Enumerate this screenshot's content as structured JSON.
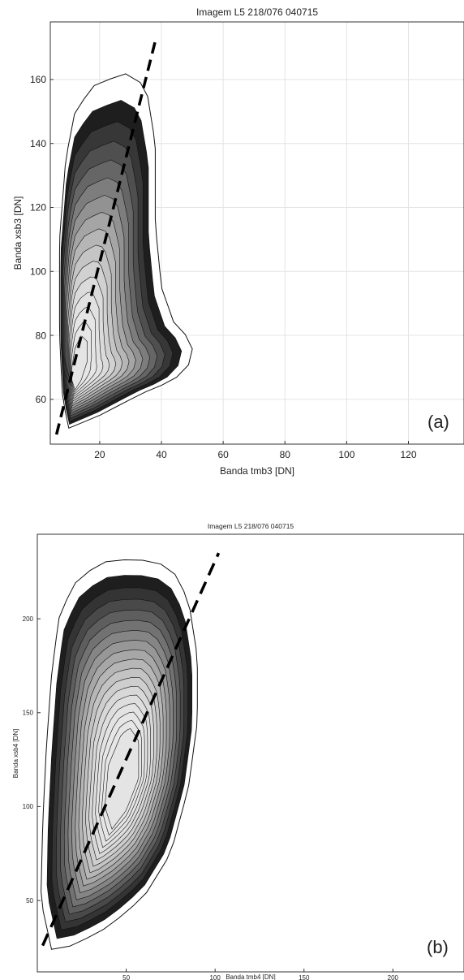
{
  "chart_data": [
    {
      "type": "contour",
      "title": "Imagem L5 218/076 040715",
      "xlabel": "Banda tmb3 [DN]",
      "ylabel": "Banda xsb3 [DN]",
      "panel_label": "(a)",
      "xlim": [
        4,
        138
      ],
      "ylim": [
        46,
        178
      ],
      "xticks": [
        20,
        40,
        60,
        80,
        100,
        120
      ],
      "yticks": [
        60,
        80,
        100,
        120,
        140,
        160
      ],
      "grid": true,
      "fit_line": {
        "style": "dashed",
        "x": [
          6,
          38
        ],
        "y": [
          49,
          172
        ]
      },
      "density": {
        "outer": [
          [
            10,
            51
          ],
          [
            20,
            55
          ],
          [
            34,
            62
          ],
          [
            44,
            66
          ],
          [
            50,
            72
          ],
          [
            50,
            78
          ],
          [
            44,
            84
          ],
          [
            40,
            95
          ],
          [
            38,
            115
          ],
          [
            38,
            140
          ],
          [
            35,
            158
          ],
          [
            28,
            162
          ],
          [
            18,
            158
          ],
          [
            12,
            150
          ],
          [
            9,
            135
          ],
          [
            7,
            110
          ],
          [
            7,
            80
          ],
          [
            8,
            60
          ]
        ],
        "core": [
          [
            12,
            63
          ],
          [
            14,
            66
          ],
          [
            16,
            72
          ],
          [
            16,
            78
          ],
          [
            14,
            80
          ],
          [
            12,
            76
          ],
          [
            11,
            70
          ],
          [
            11,
            66
          ]
        ]
      }
    },
    {
      "type": "contour",
      "title": "Imagem L5 218/076 040715",
      "xlabel": "Banda tmb4 [DN]",
      "ylabel": "Banda xsb4 [DN]",
      "panel_label": "(b)",
      "xlim": [
        0,
        240
      ],
      "ylim": [
        12,
        245
      ],
      "xticks": [
        50,
        100,
        150,
        200
      ],
      "yticks": [
        50,
        100,
        150,
        200
      ],
      "grid": false,
      "fit_line": {
        "style": "dashed",
        "x": [
          3,
          102
        ],
        "y": [
          26,
          235
        ]
      },
      "density": {
        "outer": [
          [
            8,
            24
          ],
          [
            20,
            26
          ],
          [
            40,
            36
          ],
          [
            60,
            52
          ],
          [
            75,
            75
          ],
          [
            85,
            110
          ],
          [
            90,
            145
          ],
          [
            90,
            180
          ],
          [
            85,
            210
          ],
          [
            75,
            228
          ],
          [
            55,
            232
          ],
          [
            35,
            230
          ],
          [
            20,
            218
          ],
          [
            12,
            200
          ],
          [
            8,
            170
          ],
          [
            5,
            130
          ],
          [
            3,
            90
          ],
          [
            2,
            50
          ]
        ],
        "core": [
          [
            42,
            88
          ],
          [
            50,
            98
          ],
          [
            57,
            115
          ],
          [
            57,
            135
          ],
          [
            52,
            142
          ],
          [
            47,
            138
          ],
          [
            40,
            122
          ],
          [
            38,
            100
          ]
        ]
      }
    }
  ]
}
